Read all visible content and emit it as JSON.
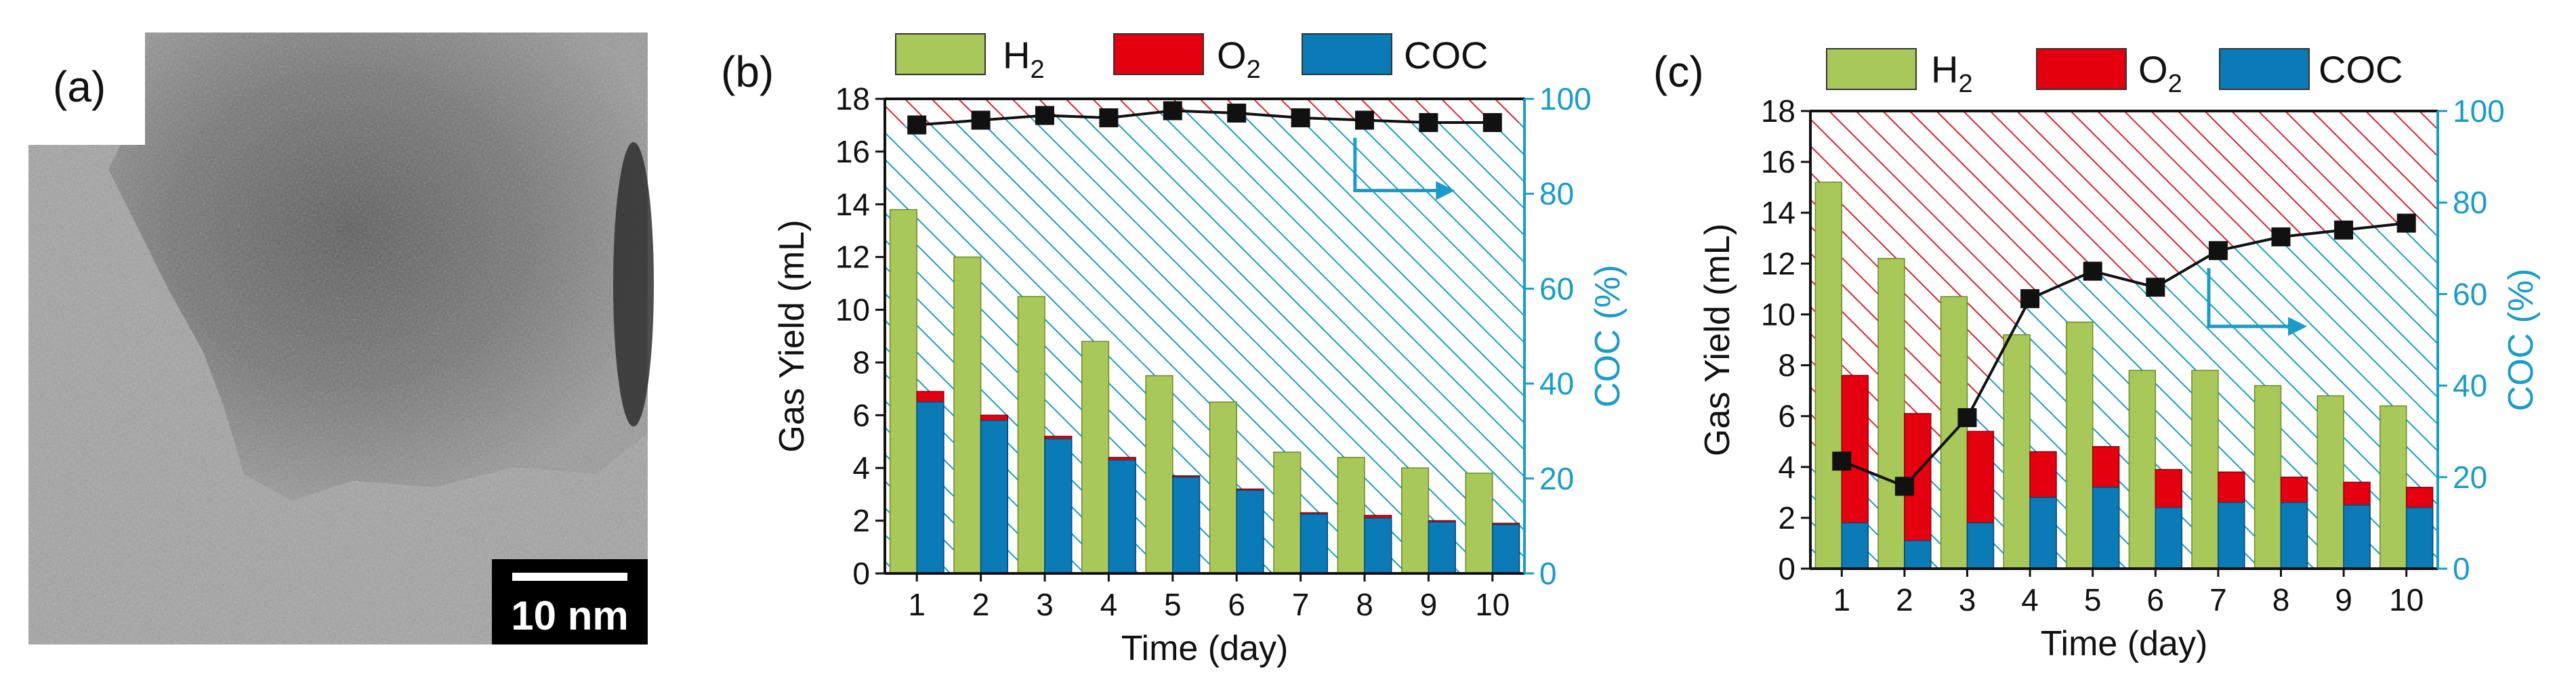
{
  "panels": {
    "a": {
      "label": "(a)",
      "scale_bar": "10 nm"
    }
  },
  "legend": {
    "h2": {
      "base": "H",
      "sub": "2"
    },
    "o2": {
      "base": "O",
      "sub": "2"
    },
    "coc": {
      "label": "COC"
    }
  },
  "colors": {
    "h2": "#a8c85a",
    "o2": "#e4000f",
    "coc": "#0a7bb6",
    "hatch_red": "#d7262c",
    "hatch_blue": "#1a9cc8",
    "right_axis": "#1a9cc8",
    "line": "#111111"
  },
  "chart_data": [
    {
      "panel": "(b)",
      "type": "bar",
      "xlabel": "Time (day)",
      "ylabel": "Gas Yield (mL)",
      "y2label": "COC (%)",
      "categories": [
        "1",
        "2",
        "3",
        "4",
        "5",
        "6",
        "7",
        "8",
        "9",
        "10"
      ],
      "ylim": [
        0,
        18
      ],
      "y2lim": [
        0,
        100
      ],
      "yticks": [
        0,
        2,
        4,
        6,
        8,
        10,
        12,
        14,
        16,
        18
      ],
      "y2ticks": [
        0,
        20,
        40,
        60,
        80,
        100
      ],
      "series": [
        {
          "name": "H2",
          "values": [
            13.8,
            12.0,
            10.5,
            8.8,
            7.5,
            6.5,
            4.6,
            4.4,
            4.0,
            3.8
          ]
        },
        {
          "name": "O2",
          "values": [
            6.9,
            6.0,
            5.2,
            4.4,
            3.7,
            3.2,
            2.3,
            2.2,
            2.0,
            1.9
          ]
        },
        {
          "name": "COC",
          "values": [
            6.5,
            5.8,
            5.1,
            4.3,
            3.65,
            3.15,
            2.25,
            2.1,
            1.95,
            1.85
          ]
        },
        {
          "name": "COC (%)",
          "axis": "right",
          "values": [
            94.5,
            95.5,
            96.5,
            96.0,
            97.5,
            97.0,
            96.0,
            95.5,
            95.0,
            95.0
          ]
        }
      ]
    },
    {
      "panel": "(c)",
      "type": "bar",
      "xlabel": "Time (day)",
      "ylabel": "Gas Yield (mL)",
      "y2label": "COC (%)",
      "categories": [
        "1",
        "2",
        "3",
        "4",
        "5",
        "6",
        "7",
        "8",
        "9",
        "10"
      ],
      "ylim": [
        0,
        18
      ],
      "y2lim": [
        0,
        100
      ],
      "yticks": [
        0,
        2,
        4,
        6,
        8,
        10,
        12,
        14,
        16,
        18
      ],
      "y2ticks": [
        0,
        20,
        40,
        60,
        80,
        100
      ],
      "series": [
        {
          "name": "H2",
          "values": [
            15.2,
            12.2,
            10.7,
            9.2,
            9.7,
            7.8,
            7.8,
            7.2,
            6.8,
            6.4
          ]
        },
        {
          "name": "O2",
          "values": [
            7.6,
            6.1,
            5.4,
            4.6,
            4.8,
            3.9,
            3.8,
            3.6,
            3.4,
            3.2
          ]
        },
        {
          "name": "COC",
          "values": [
            1.8,
            1.1,
            1.8,
            2.8,
            3.2,
            2.4,
            2.6,
            2.6,
            2.5,
            2.4
          ]
        },
        {
          "name": "COC (%)",
          "axis": "right",
          "values": [
            23.5,
            18.0,
            33.0,
            59.0,
            65.0,
            61.5,
            69.5,
            72.5,
            74.0,
            75.5
          ]
        }
      ]
    }
  ]
}
